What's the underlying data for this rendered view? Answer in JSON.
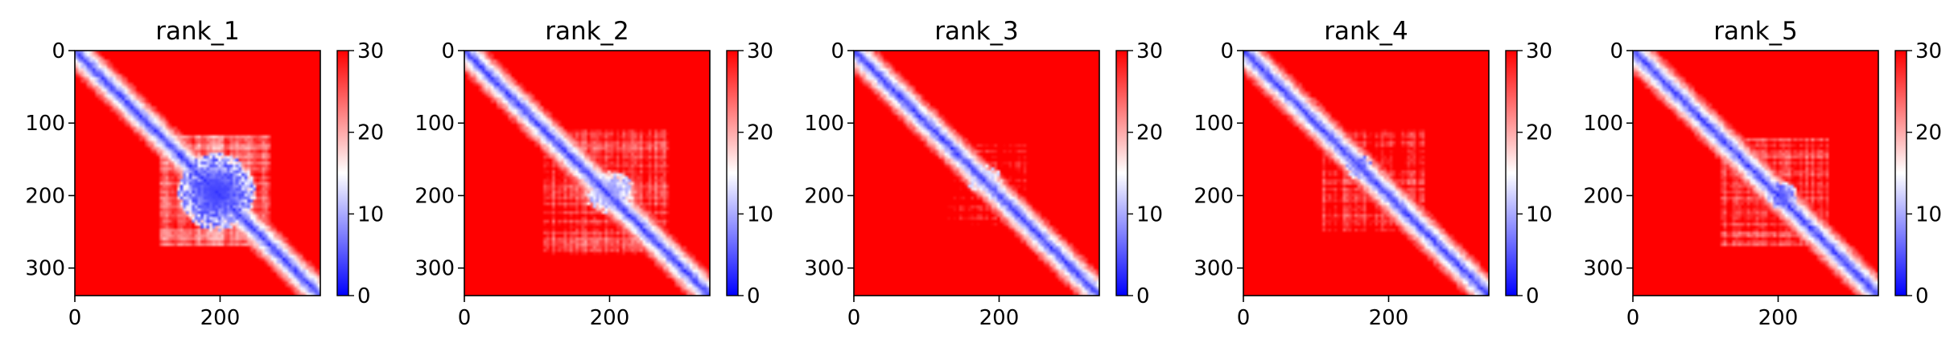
{
  "chart_data": {
    "type": "heatmap",
    "cmap": "bwr",
    "colors": {
      "low": "#0000ff",
      "mid": "#ffffff",
      "high": "#ff0000"
    },
    "n_residues": 338,
    "x_ticks": [
      0,
      200
    ],
    "y_ticks": [
      0,
      100,
      200,
      300
    ],
    "colorbar": {
      "range": [
        0,
        30
      ],
      "ticks": [
        0,
        10,
        20,
        30
      ]
    },
    "panels": [
      {
        "title": "rank_1",
        "blobs": [
          {
            "center": [
              195,
              195
            ],
            "radius": [
              45,
              45
            ],
            "value": 4
          }
        ],
        "block": {
          "range": [
            115,
            270
          ],
          "value": 17
        }
      },
      {
        "title": "rank_2",
        "blobs": [
          {
            "center": [
              200,
              195
            ],
            "radius": [
              30,
              25
            ],
            "value": 9
          }
        ],
        "block": {
          "range": [
            110,
            280
          ],
          "value": 20
        }
      },
      {
        "title": "rank_3",
        "blobs": [
          {
            "center": [
              180,
              180
            ],
            "radius": [
              20,
              20
            ],
            "value": 12
          }
        ],
        "block": {
          "range": [
            130,
            240
          ],
          "value": 23
        }
      },
      {
        "title": "rank_4",
        "blobs": [
          {
            "center": [
              160,
              160
            ],
            "radius": [
              15,
              15
            ],
            "value": 6
          }
        ],
        "block": {
          "range": [
            110,
            250
          ],
          "value": 21
        }
      },
      {
        "title": "rank_5",
        "blobs": [
          {
            "center": [
              205,
              200
            ],
            "radius": [
              18,
              15
            ],
            "value": 5
          }
        ],
        "block": {
          "range": [
            120,
            270
          ],
          "value": 19
        }
      }
    ]
  }
}
